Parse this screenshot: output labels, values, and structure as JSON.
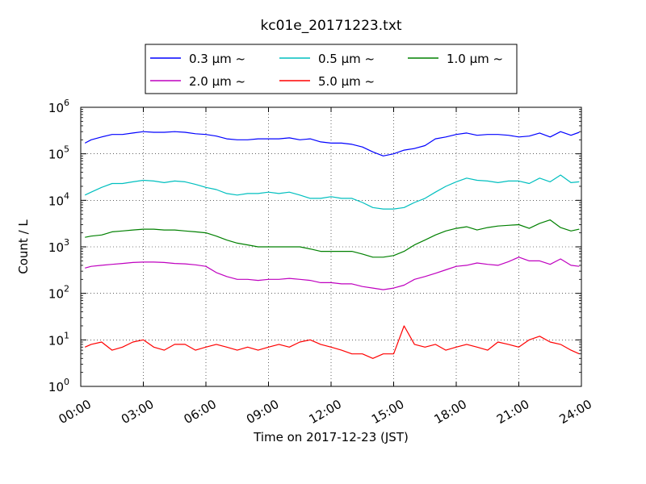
{
  "chart_data": {
    "type": "line",
    "title": "kc01e_20171223.txt",
    "xlabel": "Time on 2017-12-23 (JST)",
    "ylabel": "Count / L",
    "y_scale": "log",
    "xlim": [
      0,
      24
    ],
    "ylim": [
      1,
      1000000
    ],
    "grid": true,
    "legend_position": "top-center",
    "x_tick_labels": [
      "00:00",
      "03:00",
      "06:00",
      "09:00",
      "12:00",
      "15:00",
      "18:00",
      "21:00",
      "24:00"
    ],
    "y_tick_labels": [
      {
        "base": "10",
        "exp": "0"
      },
      {
        "base": "10",
        "exp": "1"
      },
      {
        "base": "10",
        "exp": "2"
      },
      {
        "base": "10",
        "exp": "3"
      },
      {
        "base": "10",
        "exp": "4"
      },
      {
        "base": "10",
        "exp": "5"
      },
      {
        "base": "10",
        "exp": "6"
      }
    ],
    "x": [
      0.2,
      0.5,
      1.0,
      1.5,
      2.0,
      2.5,
      3.0,
      3.5,
      4.0,
      4.5,
      5.0,
      5.5,
      6.0,
      6.5,
      7.0,
      7.5,
      8.0,
      8.5,
      9.0,
      9.5,
      10.0,
      10.5,
      11.0,
      11.5,
      12.0,
      12.5,
      13.0,
      13.5,
      14.0,
      14.5,
      15.0,
      15.5,
      16.0,
      16.5,
      17.0,
      17.5,
      18.0,
      18.5,
      19.0,
      19.5,
      20.0,
      20.5,
      21.0,
      21.5,
      22.0,
      22.5,
      23.0,
      23.5,
      23.9
    ],
    "series": [
      {
        "name": "0.3 μm ~",
        "color": "#0000ff",
        "values": [
          170000,
          200000,
          230000,
          260000,
          260000,
          280000,
          300000,
          290000,
          290000,
          300000,
          290000,
          270000,
          260000,
          240000,
          210000,
          200000,
          200000,
          210000,
          210000,
          210000,
          220000,
          200000,
          210000,
          180000,
          170000,
          170000,
          160000,
          140000,
          110000,
          90000,
          100000,
          120000,
          130000,
          150000,
          210000,
          230000,
          260000,
          280000,
          250000,
          260000,
          260000,
          250000,
          230000,
          240000,
          280000,
          230000,
          300000,
          250000,
          290000
        ]
      },
      {
        "name": "0.5 μm ~",
        "color": "#00bfbf",
        "values": [
          13000,
          15000,
          19000,
          23000,
          23000,
          25000,
          27000,
          26000,
          24000,
          26000,
          25000,
          22000,
          19000,
          17000,
          14000,
          13000,
          14000,
          14000,
          15000,
          14000,
          15000,
          13000,
          11000,
          11000,
          12000,
          11000,
          11000,
          9000,
          7000,
          6500,
          6500,
          7000,
          9000,
          11000,
          15000,
          20000,
          25000,
          30000,
          27000,
          26000,
          24000,
          26000,
          26000,
          23000,
          30000,
          25000,
          35000,
          24000,
          25000
        ]
      },
      {
        "name": "1.0 μm ~",
        "color": "#008000",
        "values": [
          1600,
          1700,
          1800,
          2100,
          2200,
          2300,
          2400,
          2400,
          2300,
          2300,
          2200,
          2100,
          2000,
          1700,
          1400,
          1200,
          1100,
          1000,
          1000,
          1000,
          1000,
          1000,
          900,
          800,
          800,
          800,
          800,
          700,
          600,
          600,
          650,
          800,
          1100,
          1400,
          1800,
          2200,
          2500,
          2700,
          2300,
          2600,
          2800,
          2900,
          3000,
          2500,
          3200,
          3800,
          2600,
          2200,
          2400
        ]
      },
      {
        "name": "2.0 μm ~",
        "color": "#bf00bf",
        "values": [
          350,
          380,
          400,
          420,
          440,
          460,
          470,
          470,
          460,
          440,
          430,
          410,
          380,
          280,
          230,
          200,
          200,
          190,
          200,
          200,
          210,
          200,
          190,
          170,
          170,
          160,
          160,
          140,
          130,
          120,
          130,
          150,
          200,
          230,
          270,
          320,
          380,
          400,
          450,
          420,
          400,
          480,
          600,
          500,
          500,
          420,
          550,
          400,
          380
        ]
      },
      {
        "name": "5.0 μm ~",
        "color": "#ff0000",
        "values": [
          7,
          8,
          9,
          6,
          7,
          9,
          10,
          7,
          6,
          8,
          8,
          6,
          7,
          8,
          7,
          6,
          7,
          6,
          7,
          8,
          7,
          9,
          10,
          8,
          7,
          6,
          5,
          5,
          4,
          5,
          5,
          20,
          8,
          7,
          8,
          6,
          7,
          8,
          7,
          6,
          9,
          8,
          7,
          10,
          12,
          9,
          8,
          6,
          5
        ]
      }
    ]
  }
}
